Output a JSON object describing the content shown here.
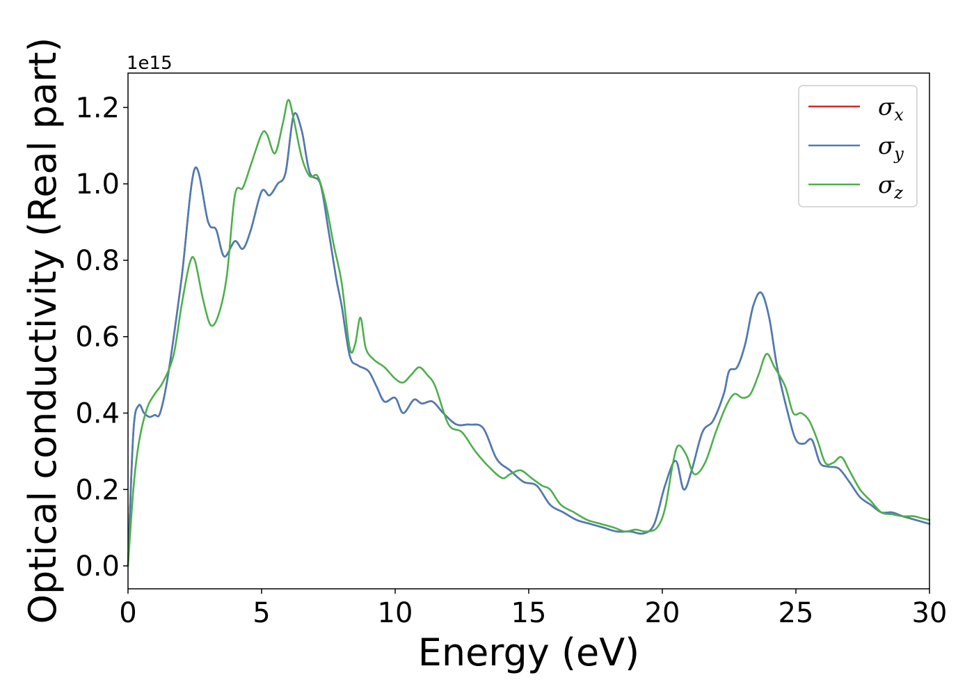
{
  "chart_data": {
    "type": "line",
    "xlabel": "Energy (eV)",
    "ylabel": "Optical conductivity (Real part)",
    "y_offset_label": "1e15",
    "xlim": [
      0,
      30
    ],
    "ylim": [
      -0.06,
      1.29
    ],
    "x_ticks": [
      0,
      5,
      10,
      15,
      20,
      25,
      30
    ],
    "x_tick_labels": [
      "0",
      "5",
      "10",
      "15",
      "20",
      "25",
      "30"
    ],
    "y_ticks": [
      0.0,
      0.2,
      0.4,
      0.6,
      0.8,
      1.0,
      1.2
    ],
    "y_tick_labels": [
      "0.0",
      "0.2",
      "0.4",
      "0.6",
      "0.8",
      "1.0",
      "1.2"
    ],
    "grid": false,
    "legend_position": "top-right",
    "legend": [
      {
        "symbol": "σ",
        "sub": "x",
        "color": "#d62728"
      },
      {
        "symbol": "σ",
        "sub": "y",
        "color": "#4a7db5"
      },
      {
        "symbol": "σ",
        "sub": "z",
        "color": "#4daf4a"
      }
    ],
    "series": [
      {
        "color": "#d62728",
        "x": [
          0,
          0.2,
          0.4,
          0.6,
          0.8,
          1.0,
          1.2,
          1.5,
          2.0,
          2.5,
          3.0,
          3.3,
          3.6,
          4.0,
          4.3,
          4.6,
          5.0,
          5.3,
          5.6,
          5.9,
          6.2,
          6.5,
          6.8,
          7.2,
          7.5,
          7.8,
          8.0,
          8.3,
          8.6,
          9.0,
          9.3,
          9.6,
          10.0,
          10.3,
          10.7,
          11.0,
          11.4,
          11.8,
          12.3,
          12.8,
          13.3,
          13.8,
          14.3,
          14.8,
          15.3,
          15.8,
          16.3,
          16.8,
          17.3,
          17.8,
          18.3,
          18.8,
          19.3,
          19.7,
          20.1,
          20.5,
          20.8,
          21.1,
          21.5,
          21.9,
          22.3,
          22.5,
          22.8,
          23.1,
          23.4,
          23.7,
          24.0,
          24.3,
          24.7,
          25.0,
          25.3,
          25.6,
          25.9,
          26.2,
          26.6,
          27.0,
          27.4,
          27.8,
          28.2,
          28.6,
          29.0,
          29.5,
          30.0
        ],
        "y": [
          0.0,
          0.35,
          0.42,
          0.4,
          0.39,
          0.395,
          0.4,
          0.5,
          0.75,
          1.04,
          0.9,
          0.88,
          0.81,
          0.85,
          0.83,
          0.88,
          0.98,
          0.97,
          1.0,
          1.03,
          1.18,
          1.14,
          1.03,
          1.0,
          0.88,
          0.75,
          0.68,
          0.55,
          0.525,
          0.51,
          0.47,
          0.43,
          0.44,
          0.4,
          0.435,
          0.425,
          0.43,
          0.4,
          0.37,
          0.37,
          0.36,
          0.28,
          0.25,
          0.22,
          0.21,
          0.16,
          0.14,
          0.12,
          0.11,
          0.1,
          0.09,
          0.09,
          0.085,
          0.11,
          0.21,
          0.275,
          0.2,
          0.25,
          0.35,
          0.38,
          0.45,
          0.51,
          0.52,
          0.58,
          0.68,
          0.715,
          0.65,
          0.52,
          0.4,
          0.33,
          0.32,
          0.33,
          0.27,
          0.26,
          0.255,
          0.22,
          0.18,
          0.16,
          0.14,
          0.14,
          0.13,
          0.12,
          0.11
        ]
      },
      {
        "color": "#4a7db5",
        "x": [
          0,
          0.2,
          0.4,
          0.6,
          0.8,
          1.0,
          1.2,
          1.5,
          2.0,
          2.5,
          3.0,
          3.3,
          3.6,
          4.0,
          4.3,
          4.6,
          5.0,
          5.3,
          5.6,
          5.9,
          6.2,
          6.5,
          6.8,
          7.2,
          7.5,
          7.8,
          8.0,
          8.3,
          8.6,
          9.0,
          9.3,
          9.6,
          10.0,
          10.3,
          10.7,
          11.0,
          11.4,
          11.8,
          12.3,
          12.8,
          13.3,
          13.8,
          14.3,
          14.8,
          15.3,
          15.8,
          16.3,
          16.8,
          17.3,
          17.8,
          18.3,
          18.8,
          19.3,
          19.7,
          20.1,
          20.5,
          20.8,
          21.1,
          21.5,
          21.9,
          22.3,
          22.5,
          22.8,
          23.1,
          23.4,
          23.7,
          24.0,
          24.3,
          24.7,
          25.0,
          25.3,
          25.6,
          25.9,
          26.2,
          26.6,
          27.0,
          27.4,
          27.8,
          28.2,
          28.6,
          29.0,
          29.5,
          30.0
        ],
        "y": [
          0.0,
          0.35,
          0.42,
          0.4,
          0.39,
          0.395,
          0.4,
          0.5,
          0.75,
          1.04,
          0.9,
          0.88,
          0.81,
          0.85,
          0.83,
          0.88,
          0.98,
          0.97,
          1.0,
          1.03,
          1.18,
          1.14,
          1.03,
          1.0,
          0.88,
          0.75,
          0.68,
          0.55,
          0.525,
          0.51,
          0.47,
          0.43,
          0.44,
          0.4,
          0.435,
          0.425,
          0.43,
          0.4,
          0.37,
          0.37,
          0.36,
          0.28,
          0.25,
          0.22,
          0.21,
          0.16,
          0.14,
          0.12,
          0.11,
          0.1,
          0.09,
          0.09,
          0.085,
          0.11,
          0.21,
          0.275,
          0.2,
          0.25,
          0.35,
          0.38,
          0.45,
          0.51,
          0.52,
          0.58,
          0.68,
          0.715,
          0.65,
          0.52,
          0.4,
          0.33,
          0.32,
          0.33,
          0.27,
          0.26,
          0.255,
          0.22,
          0.18,
          0.16,
          0.14,
          0.14,
          0.13,
          0.12,
          0.11
        ]
      },
      {
        "color": "#4daf4a",
        "x": [
          0,
          0.2,
          0.4,
          0.7,
          1.0,
          1.3,
          1.7,
          2.0,
          2.3,
          2.5,
          2.8,
          3.1,
          3.4,
          3.7,
          4.0,
          4.3,
          4.6,
          5.0,
          5.2,
          5.5,
          5.8,
          6.0,
          6.2,
          6.5,
          6.8,
          7.1,
          7.4,
          7.7,
          8.0,
          8.3,
          8.5,
          8.7,
          8.9,
          9.2,
          9.6,
          10.0,
          10.3,
          10.6,
          10.9,
          11.2,
          11.5,
          12.0,
          12.5,
          13.0,
          13.5,
          14.0,
          14.3,
          14.7,
          15.1,
          15.5,
          15.8,
          16.2,
          16.7,
          17.2,
          17.7,
          18.2,
          18.6,
          19.0,
          19.4,
          19.8,
          20.1,
          20.4,
          20.6,
          20.9,
          21.2,
          21.6,
          22.0,
          22.4,
          22.7,
          23.0,
          23.3,
          23.6,
          23.9,
          24.2,
          24.6,
          24.9,
          25.2,
          25.5,
          25.8,
          26.1,
          26.4,
          26.7,
          27.0,
          27.4,
          27.8,
          28.2,
          28.6,
          29.0,
          29.4,
          29.7,
          30.0
        ],
        "y": [
          0.0,
          0.2,
          0.32,
          0.41,
          0.45,
          0.48,
          0.55,
          0.68,
          0.79,
          0.8,
          0.7,
          0.63,
          0.66,
          0.76,
          0.97,
          0.99,
          1.05,
          1.13,
          1.13,
          1.08,
          1.16,
          1.22,
          1.17,
          1.07,
          1.02,
          1.02,
          0.95,
          0.84,
          0.74,
          0.57,
          0.58,
          0.65,
          0.57,
          0.54,
          0.52,
          0.49,
          0.48,
          0.5,
          0.52,
          0.5,
          0.47,
          0.37,
          0.35,
          0.3,
          0.26,
          0.23,
          0.24,
          0.25,
          0.23,
          0.21,
          0.2,
          0.16,
          0.14,
          0.12,
          0.11,
          0.1,
          0.09,
          0.095,
          0.09,
          0.1,
          0.15,
          0.27,
          0.315,
          0.29,
          0.24,
          0.27,
          0.35,
          0.42,
          0.45,
          0.44,
          0.45,
          0.5,
          0.555,
          0.52,
          0.47,
          0.4,
          0.4,
          0.38,
          0.33,
          0.27,
          0.27,
          0.285,
          0.25,
          0.2,
          0.17,
          0.14,
          0.135,
          0.13,
          0.13,
          0.125,
          0.12
        ]
      }
    ]
  }
}
